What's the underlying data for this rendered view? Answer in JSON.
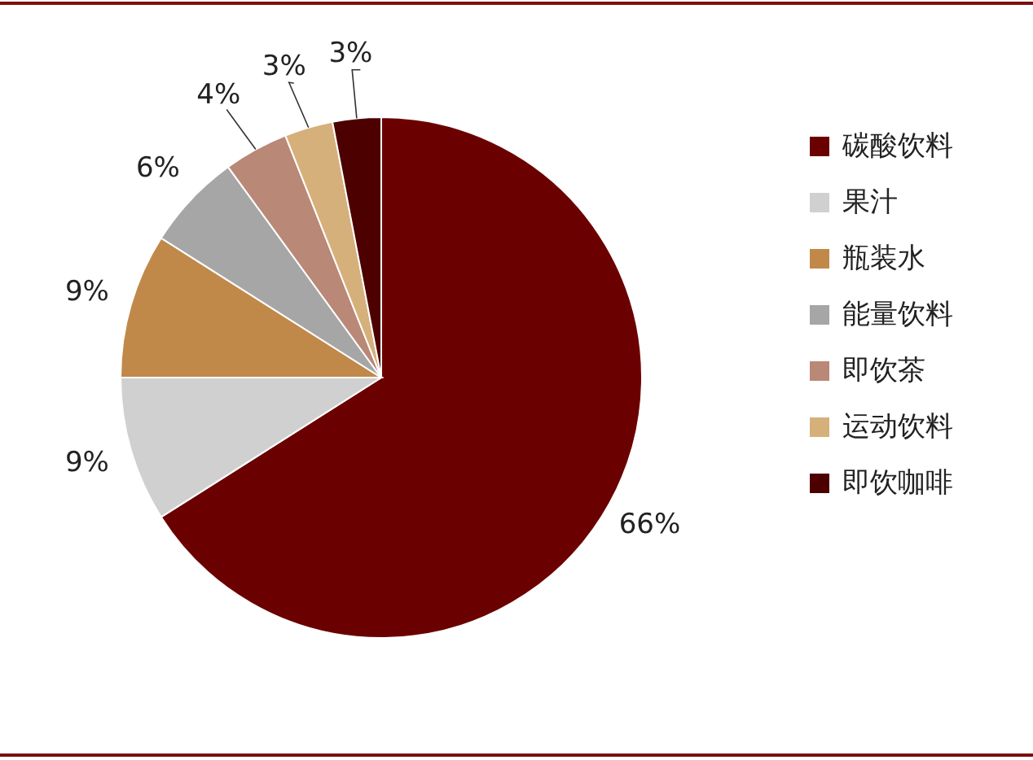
{
  "chart_data": {
    "type": "pie",
    "categories": [
      "碳酸饮料",
      "果汁",
      "瓶装水",
      "能量饮料",
      "即饮茶",
      "运动饮料",
      "即饮咖啡"
    ],
    "values": [
      66,
      9,
      9,
      6,
      4,
      3,
      3
    ],
    "colors": [
      "#6b0000",
      "#d0d0d0",
      "#c0894a",
      "#a6a6a6",
      "#b98876",
      "#d6b07a",
      "#4d0000"
    ],
    "value_labels": [
      "66%",
      "9%",
      "9%",
      "6%",
      "4%",
      "3%",
      "3%"
    ],
    "legend": "right"
  }
}
